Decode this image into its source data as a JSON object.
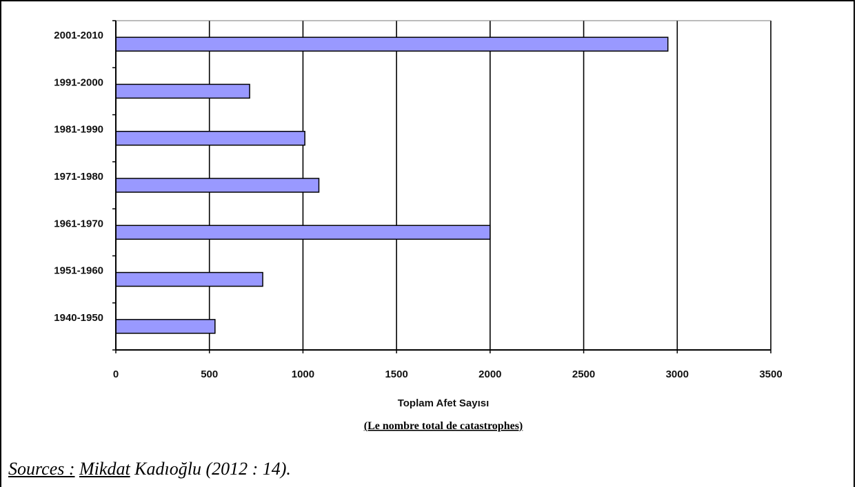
{
  "chart_data": {
    "type": "bar",
    "orientation": "horizontal",
    "categories": [
      "2001-2010",
      "1991-2000",
      "1981-1990",
      "1971-1980",
      "1961-1970",
      "1951-1960",
      "1940-1950"
    ],
    "values": [
      2950,
      715,
      1010,
      1085,
      2000,
      785,
      530
    ],
    "xlabel": "Toplam Afet Sayısı",
    "xlabel_translation": "(Le nombre total de catastrophes)",
    "xlim": [
      0,
      3500
    ],
    "xticks": [
      0,
      500,
      1000,
      1500,
      2000,
      2500,
      3000,
      3500
    ],
    "grid": "vertical",
    "legend": "none",
    "bar_color": "#9999ff",
    "bar_edge_color": "#000000"
  },
  "source": {
    "label": "Sources :",
    "author_first": "Mikdat",
    "author_rest": "Kadıoğlu (2012 : 14)."
  }
}
